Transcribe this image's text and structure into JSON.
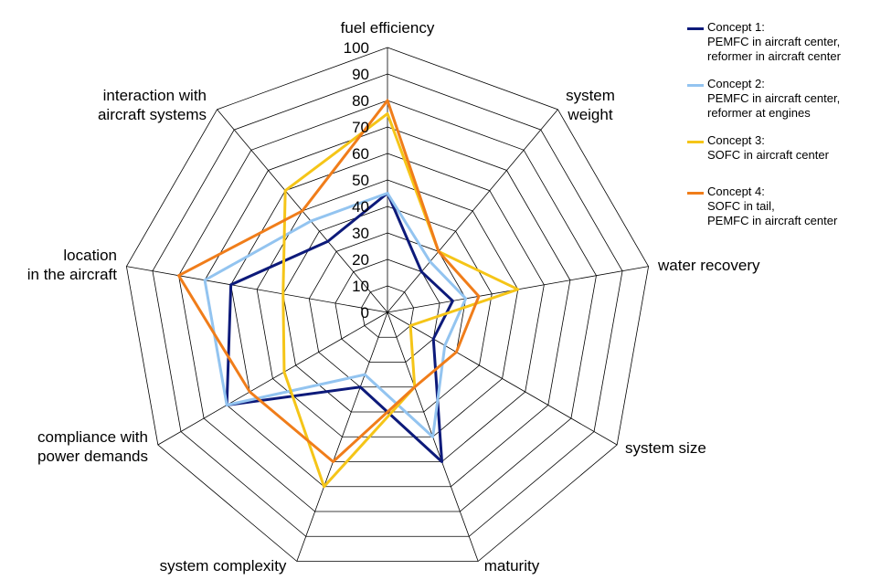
{
  "chart_data": {
    "type": "radar",
    "axes": [
      "fuel efficiency",
      "system\nweight",
      "water recovery",
      "system size",
      "maturity",
      "system complexity",
      "compliance with\npower demands",
      "location\nin the aircraft",
      "interaction with\naircraft systems"
    ],
    "range": [
      0,
      100
    ],
    "ticks": [
      "0",
      "10",
      "20",
      "30",
      "40",
      "50",
      "60",
      "70",
      "80",
      "90",
      "100"
    ],
    "tick_values": [
      0,
      10,
      20,
      30,
      40,
      50,
      60,
      70,
      80,
      90,
      100
    ],
    "series": [
      {
        "name": "Concept 1:\nPEMFC in aircraft center,\nreformer in aircraft center",
        "color": "#0d1a7a",
        "values": [
          45,
          20,
          25,
          20,
          60,
          30,
          70,
          60,
          35
        ]
      },
      {
        "name": "Concept 2:\nPEMFC in aircraft center,\nreformer at engines",
        "color": "#93c4f0",
        "values": [
          45,
          25,
          30,
          25,
          50,
          25,
          70,
          70,
          45
        ]
      },
      {
        "name": "Concept 3:\nSOFC in aircraft center",
        "color": "#f5c518",
        "values": [
          75,
          30,
          50,
          10,
          30,
          70,
          45,
          40,
          60
        ]
      },
      {
        "name": "Concept 4:\nSOFC in tail,\nPEMFC in aircraft center",
        "color": "#f07d1a",
        "values": [
          80,
          30,
          35,
          30,
          30,
          60,
          60,
          80,
          50
        ]
      }
    ],
    "grid": true,
    "legend_position": "top-right"
  }
}
